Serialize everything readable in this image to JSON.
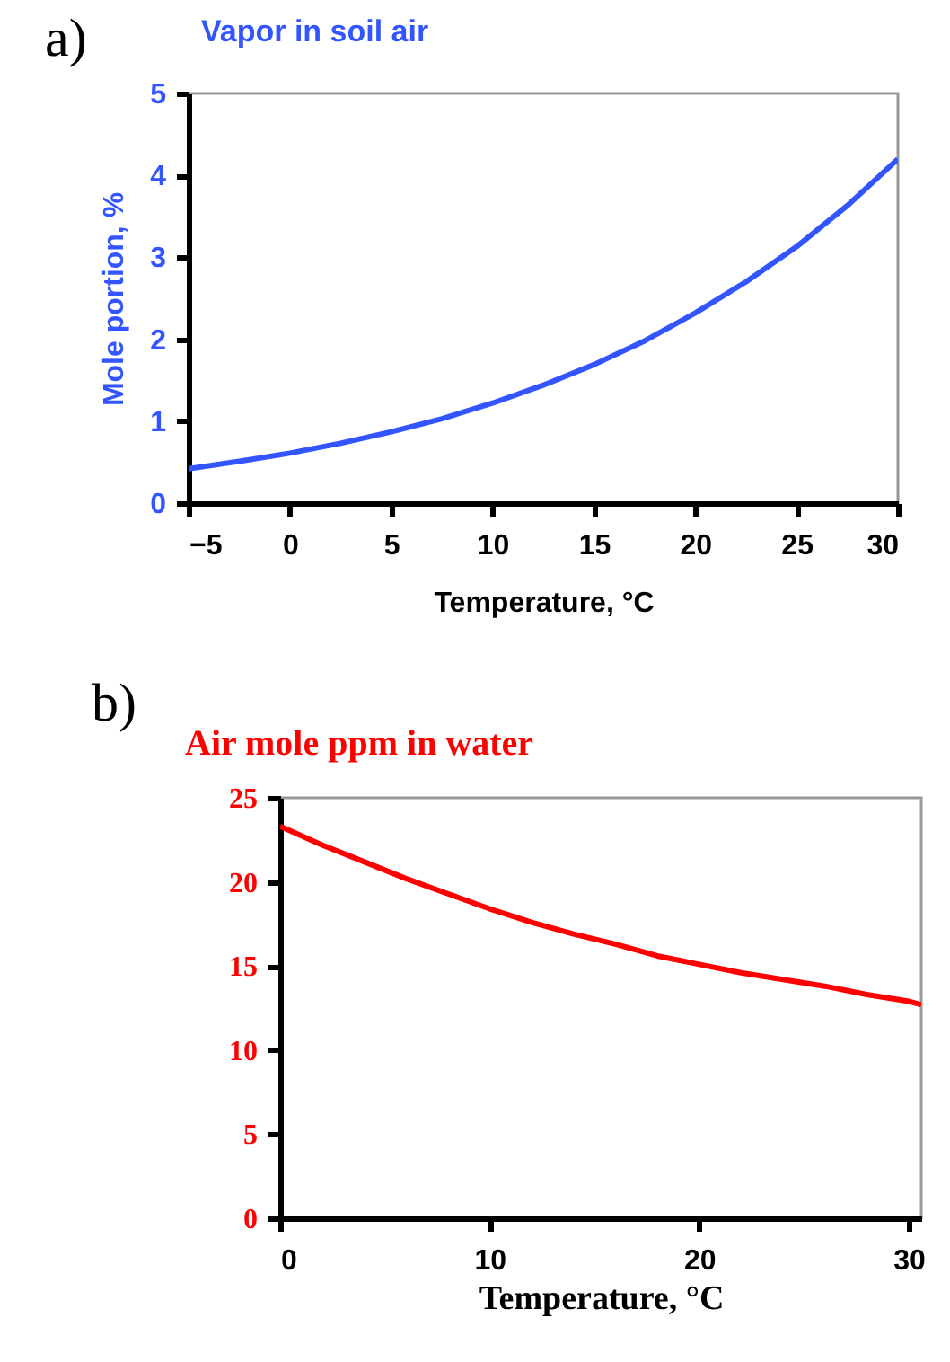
{
  "chart_data": [
    {
      "type": "line",
      "title": "Vapor in soil air",
      "xlabel": "Temperature, °C",
      "ylabel": "Mole portion, %",
      "annotations": [
        "a)"
      ],
      "x": [
        -5,
        -2.5,
        0,
        2.5,
        5,
        7.5,
        10,
        12.5,
        15,
        17.5,
        20,
        22.5,
        25,
        27.5,
        30
      ],
      "series": [
        {
          "color": "#3355ff",
          "values": [
            0.42,
            0.51,
            0.61,
            0.73,
            0.87,
            1.03,
            1.22,
            1.44,
            1.69,
            1.98,
            2.32,
            2.7,
            3.13,
            3.63,
            4.2
          ]
        }
      ],
      "xlim": [
        -5,
        30
      ],
      "xticks": [
        -5,
        0,
        5,
        10,
        15,
        20,
        25,
        30
      ],
      "ylim": [
        0,
        5
      ],
      "yticks": [
        0,
        1,
        2,
        3,
        4,
        5
      ],
      "grid": false,
      "legend": false,
      "marker": "none",
      "line_style": "solid"
    },
    {
      "type": "line",
      "title": "Air mole ppm in water",
      "xlabel": "Temperature, °C",
      "annotations": [
        "b)"
      ],
      "x": [
        0,
        2,
        4,
        6,
        8,
        10,
        12,
        14,
        16,
        18,
        20,
        22,
        24,
        26,
        28,
        30,
        30.6
      ],
      "series": [
        {
          "color": "#ff0000",
          "values": [
            23.3,
            22.2,
            21.2,
            20.2,
            19.3,
            18.4,
            17.6,
            16.9,
            16.3,
            15.6,
            15.1,
            14.6,
            14.2,
            13.8,
            13.3,
            12.9,
            12.7
          ]
        }
      ],
      "xlim": [
        0,
        30.6
      ],
      "xticks": [
        0,
        10,
        20,
        30
      ],
      "ylim": [
        0,
        25
      ],
      "yticks": [
        0,
        5,
        10,
        15,
        20,
        25
      ],
      "grid": false,
      "legend": false,
      "marker": "none",
      "line_style": "solid"
    }
  ]
}
